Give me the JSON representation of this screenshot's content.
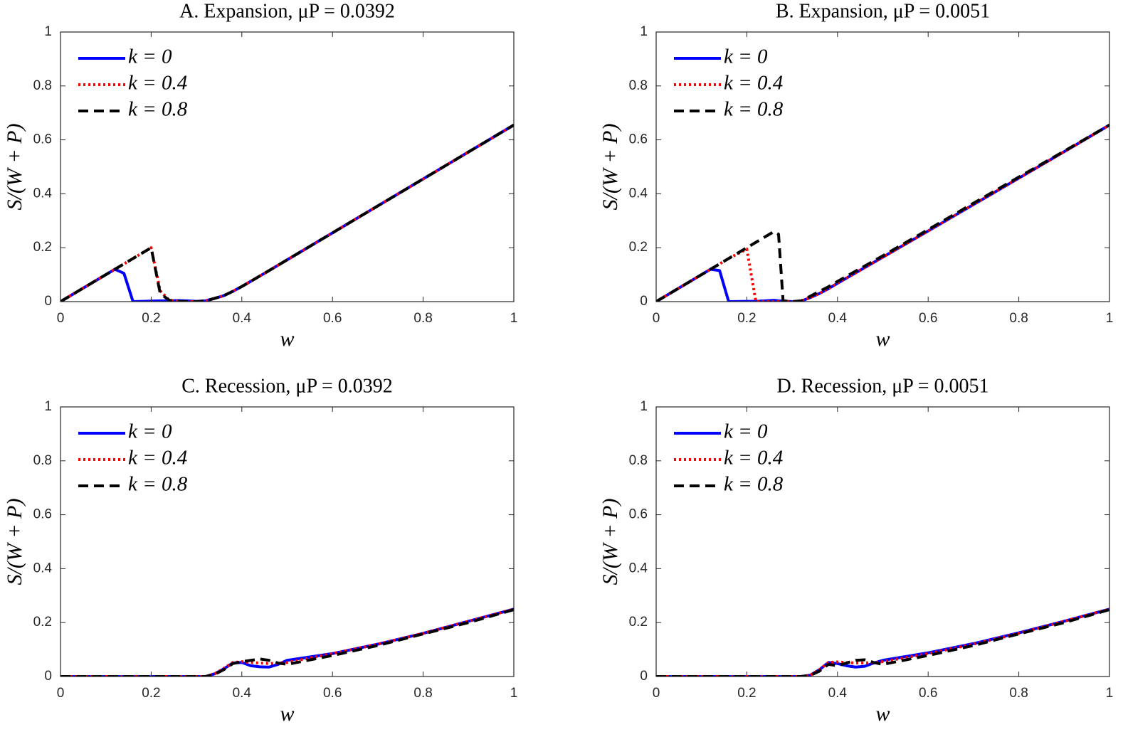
{
  "chart_data": [
    {
      "type": "line",
      "title": "A. Expansion, μP = 0.0392",
      "x_label": "w",
      "y_label": "S/(W + P)",
      "x": [
        0,
        0.12,
        0.14,
        0.16,
        0.2,
        0.22,
        0.24,
        0.26,
        0.28,
        0.3,
        0.32,
        0.34,
        0.36,
        0.38,
        0.4,
        0.45,
        0.5,
        0.6,
        0.7,
        0.8,
        0.9,
        1
      ],
      "series": [
        {
          "name": "k = 0",
          "color": "#0000ff",
          "style": "solid",
          "values": [
            0,
            0.12,
            0.105,
            0,
            0.002,
            0.003,
            0.003,
            0.004,
            0.003,
            0.001,
            0.003,
            0.012,
            0.022,
            0.038,
            0.056,
            0.105,
            0.155,
            0.255,
            0.355,
            0.455,
            0.555,
            0.655
          ]
        },
        {
          "name": "k = 0.4",
          "color": "#ff0000",
          "style": "dotted",
          "values": [
            0,
            0.12,
            0.14,
            0.16,
            0.2,
            0.04,
            0.005,
            0.001,
            0,
            0,
            0.003,
            0.012,
            0.022,
            0.038,
            0.056,
            0.105,
            0.155,
            0.255,
            0.355,
            0.455,
            0.555,
            0.655
          ]
        },
        {
          "name": "k = 0.8",
          "color": "#000000",
          "style": "dashed",
          "values": [
            0,
            0.12,
            0.14,
            0.16,
            0.2,
            0.03,
            0.005,
            0.001,
            0,
            0,
            0.003,
            0.012,
            0.022,
            0.038,
            0.056,
            0.105,
            0.155,
            0.255,
            0.355,
            0.455,
            0.555,
            0.655
          ]
        }
      ],
      "xlim": [
        0,
        1
      ],
      "ylim": [
        0,
        1
      ],
      "xticks": [
        0,
        0.2,
        0.4,
        0.6,
        0.8,
        1
      ],
      "yticks": [
        0,
        0.2,
        0.4,
        0.6,
        0.8,
        1
      ],
      "legend": "upper left"
    },
    {
      "type": "line",
      "title": "B. Expansion, μP = 0.0051",
      "x_label": "w",
      "y_label": "S/(W + P)",
      "x": [
        0,
        0.12,
        0.14,
        0.16,
        0.2,
        0.22,
        0.26,
        0.27,
        0.28,
        0.3,
        0.32,
        0.34,
        0.36,
        0.38,
        0.4,
        0.5,
        0.6,
        0.7,
        0.8,
        0.9,
        1
      ],
      "series": [
        {
          "name": "k = 0",
          "color": "#0000ff",
          "style": "solid",
          "values": [
            0,
            0.12,
            0.115,
            0,
            0.001,
            0.001,
            0.005,
            0.003,
            0.002,
            0,
            0.002,
            0.015,
            0.03,
            0.048,
            0.068,
            0.165,
            0.262,
            0.36,
            0.458,
            0.556,
            0.655
          ]
        },
        {
          "name": "k = 0.4",
          "color": "#ff0000",
          "style": "dotted",
          "values": [
            0,
            0.12,
            0.14,
            0.16,
            0.195,
            0,
            0,
            0,
            0,
            0,
            0.002,
            0.015,
            0.03,
            0.048,
            0.068,
            0.165,
            0.262,
            0.36,
            0.458,
            0.556,
            0.655
          ]
        },
        {
          "name": "k = 0.8",
          "color": "#000000",
          "style": "dashed",
          "values": [
            0,
            0.12,
            0.14,
            0.16,
            0.2,
            0.22,
            0.26,
            0.25,
            0.003,
            0,
            0.003,
            0.02,
            0.038,
            0.055,
            0.075,
            0.17,
            0.267,
            0.365,
            0.462,
            0.558,
            0.655
          ]
        }
      ],
      "xlim": [
        0,
        1
      ],
      "ylim": [
        0,
        1
      ],
      "xticks": [
        0,
        0.2,
        0.4,
        0.6,
        0.8,
        1
      ],
      "yticks": [
        0,
        0.2,
        0.4,
        0.6,
        0.8,
        1
      ],
      "legend": "upper left"
    },
    {
      "type": "line",
      "title": "C. Recession, μP = 0.0392",
      "x_label": "w",
      "y_label": "S/(W + P)",
      "x": [
        0,
        0.3,
        0.32,
        0.34,
        0.36,
        0.38,
        0.4,
        0.42,
        0.44,
        0.46,
        0.48,
        0.5,
        0.6,
        0.7,
        0.8,
        0.9,
        1
      ],
      "series": [
        {
          "name": "k = 0",
          "color": "#0000ff",
          "style": "solid",
          "values": [
            0,
            0,
            0,
            0.01,
            0.028,
            0.05,
            0.052,
            0.04,
            0.036,
            0.035,
            0.045,
            0.06,
            0.085,
            0.12,
            0.16,
            0.205,
            0.25
          ]
        },
        {
          "name": "k = 0.4",
          "color": "#ff0000",
          "style": "dotted",
          "values": [
            0,
            0,
            0,
            0.01,
            0.03,
            0.052,
            0.055,
            0.052,
            0.05,
            0.048,
            0.05,
            0.052,
            0.085,
            0.12,
            0.16,
            0.205,
            0.25
          ]
        },
        {
          "name": "k = 0.8",
          "color": "#000000",
          "style": "dashed",
          "values": [
            0,
            0,
            0,
            0.008,
            0.025,
            0.048,
            0.055,
            0.06,
            0.065,
            0.06,
            0.05,
            0.045,
            0.078,
            0.115,
            0.158,
            0.2,
            0.248
          ]
        }
      ],
      "xlim": [
        0,
        1
      ],
      "ylim": [
        0,
        1
      ],
      "xticks": [
        0,
        0.2,
        0.4,
        0.6,
        0.8,
        1
      ],
      "yticks": [
        0,
        0.2,
        0.4,
        0.6,
        0.8,
        1
      ],
      "legend": "upper left"
    },
    {
      "type": "line",
      "title": "D. Recession, μP = 0.0051",
      "x_label": "w",
      "y_label": "S/(W + P)",
      "x": [
        0,
        0.3,
        0.32,
        0.34,
        0.36,
        0.38,
        0.4,
        0.42,
        0.44,
        0.46,
        0.48,
        0.5,
        0.6,
        0.7,
        0.8,
        0.9,
        1
      ],
      "series": [
        {
          "name": "k = 0",
          "color": "#0000ff",
          "style": "solid",
          "values": [
            0,
            0,
            0,
            0.005,
            0.025,
            0.052,
            0.048,
            0.04,
            0.035,
            0.038,
            0.05,
            0.06,
            0.088,
            0.122,
            0.162,
            0.205,
            0.25
          ]
        },
        {
          "name": "k = 0.4",
          "color": "#ff0000",
          "style": "dotted",
          "values": [
            0,
            0,
            0,
            0.005,
            0.025,
            0.052,
            0.054,
            0.052,
            0.05,
            0.05,
            0.052,
            0.055,
            0.085,
            0.12,
            0.16,
            0.205,
            0.25
          ]
        },
        {
          "name": "k = 0.8",
          "color": "#000000",
          "style": "dashed",
          "values": [
            0,
            0,
            0,
            0.004,
            0.02,
            0.045,
            0.04,
            0.05,
            0.06,
            0.062,
            0.052,
            0.045,
            0.078,
            0.115,
            0.158,
            0.2,
            0.248
          ]
        }
      ],
      "xlim": [
        0,
        1
      ],
      "ylim": [
        0,
        1
      ],
      "xticks": [
        0,
        0.2,
        0.4,
        0.6,
        0.8,
        1
      ],
      "yticks": [
        0,
        0.2,
        0.4,
        0.6,
        0.8,
        1
      ],
      "legend": "upper left"
    }
  ]
}
